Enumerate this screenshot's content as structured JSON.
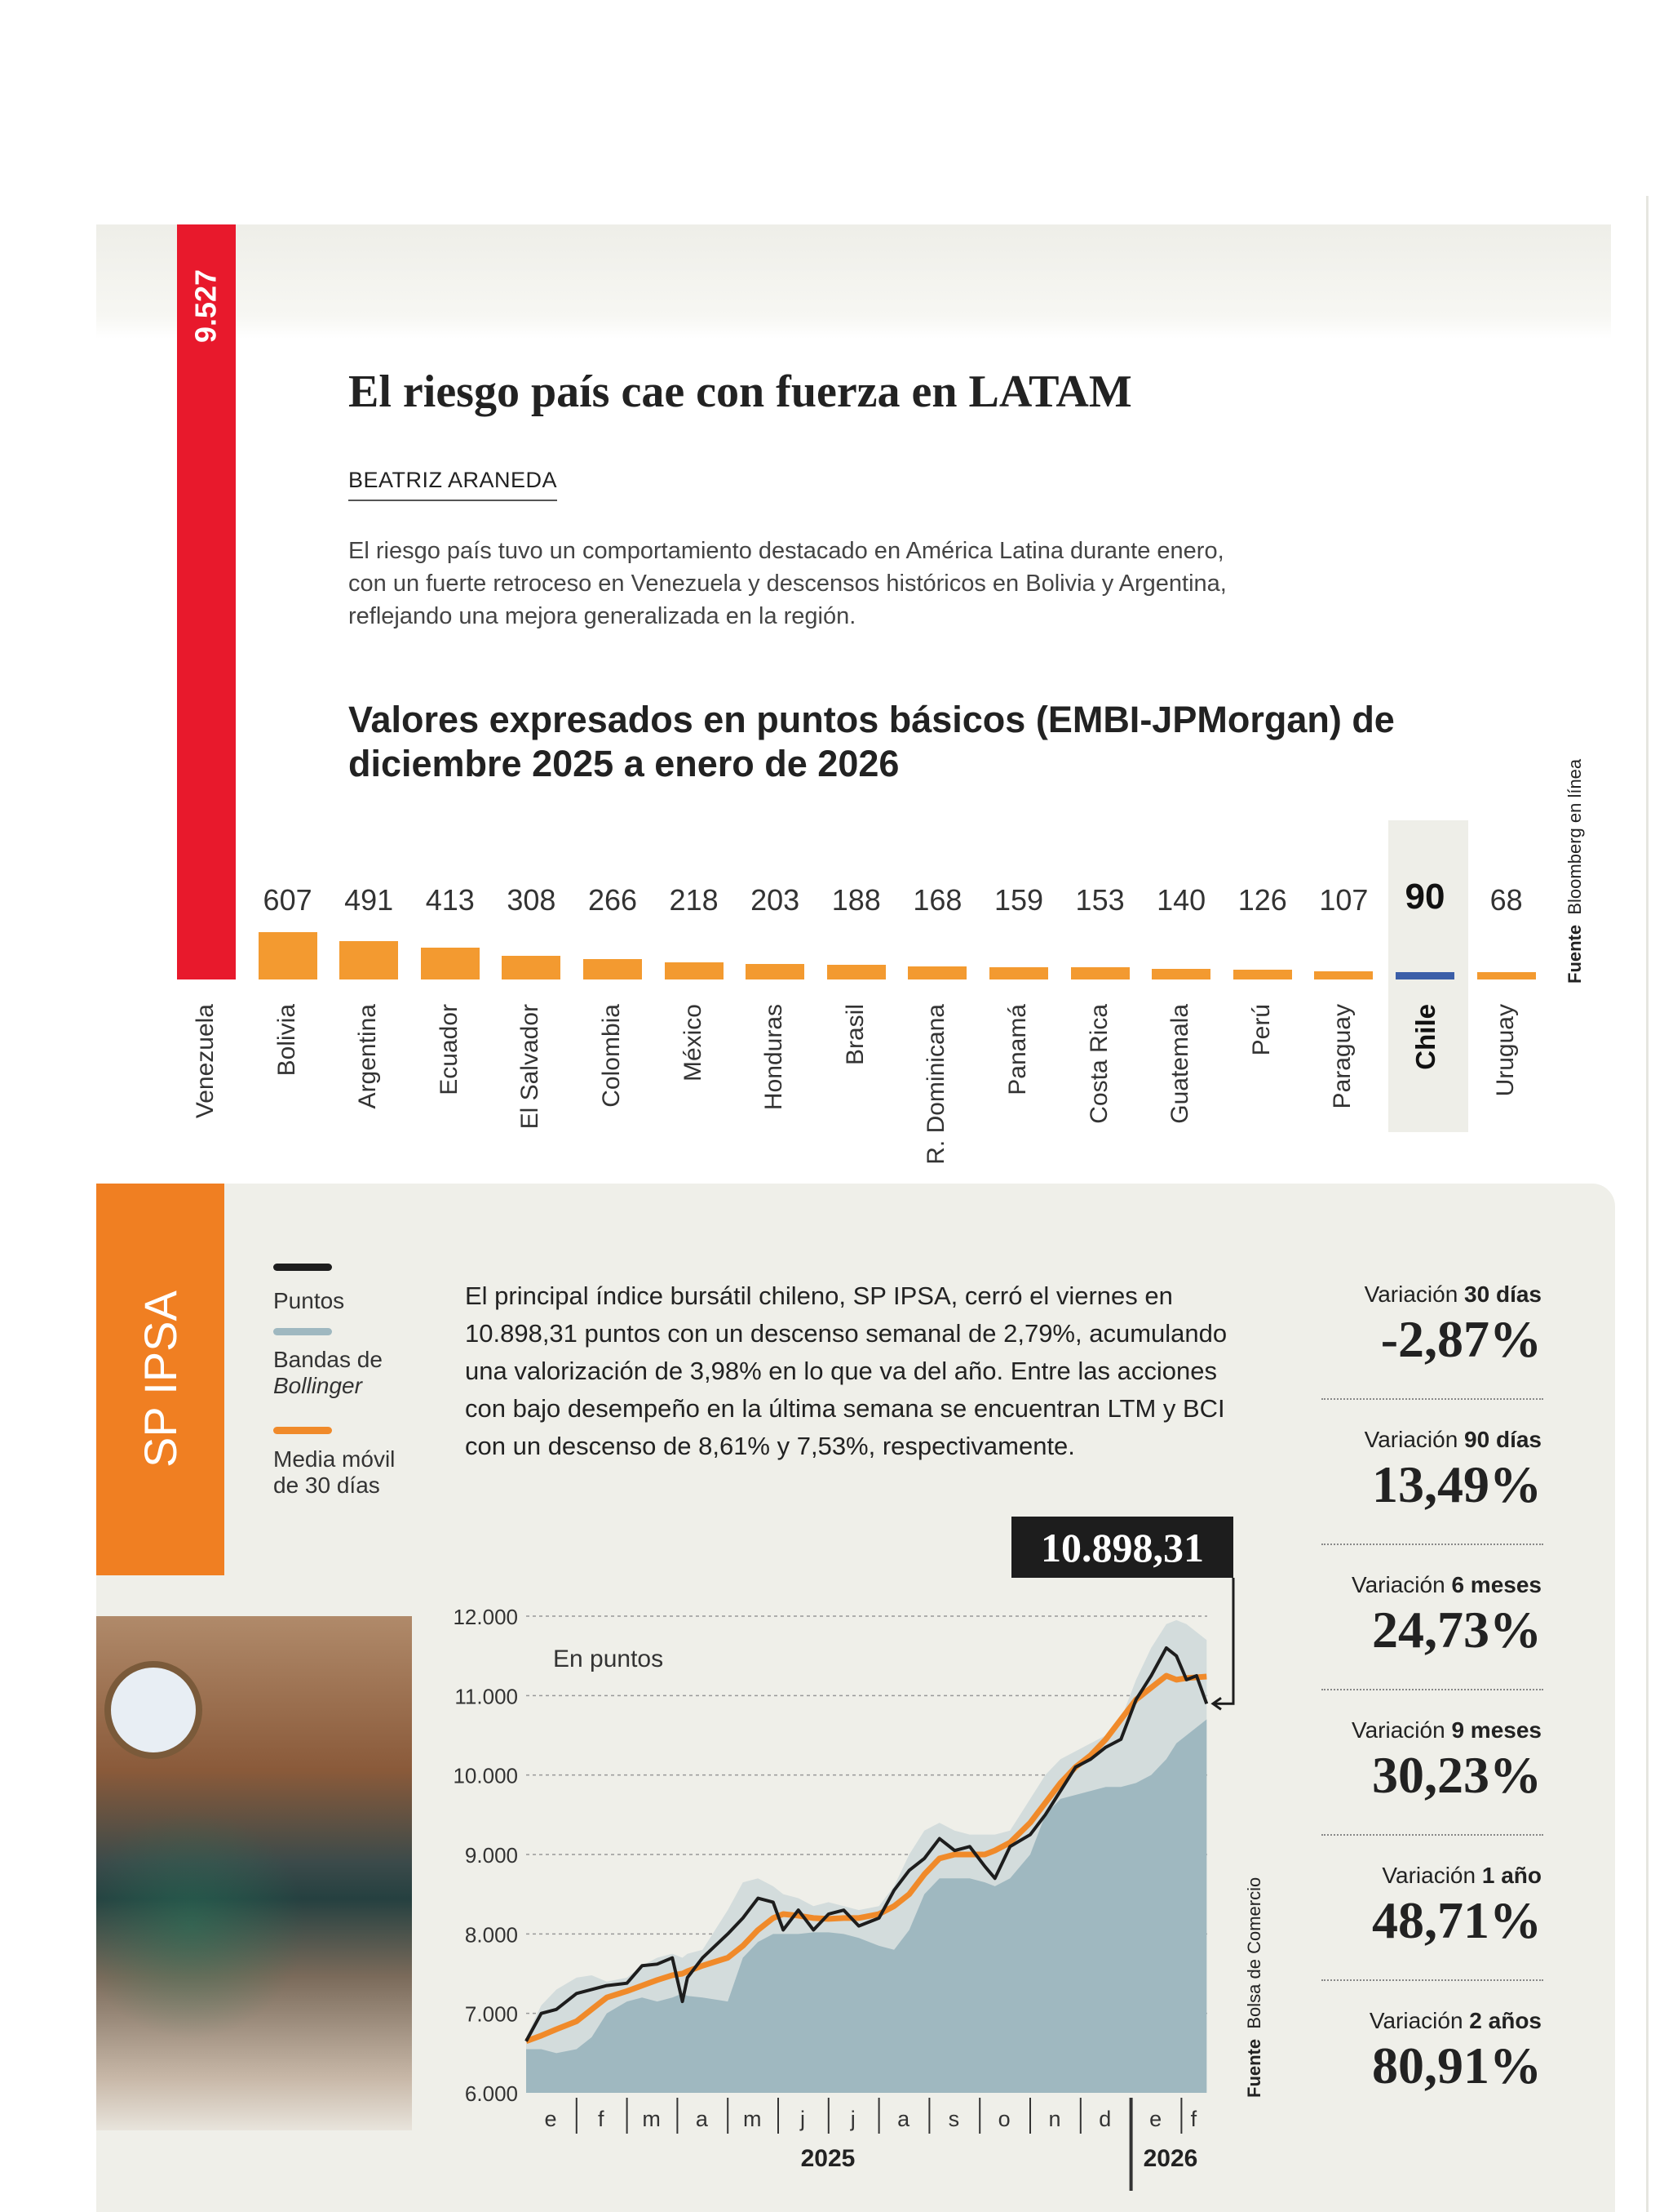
{
  "header": {
    "title": "El riesgo país cae con fuerza en LATAM",
    "author": "BEATRIZ ARANEDA",
    "intro": "El riesgo país tuvo un comportamiento destacado en América Latina durante enero, con un fuerte retroceso en Venezuela y descensos históricos en Bolivia y Argentina, reflejando una mejora generalizada en la región."
  },
  "chart_data": [
    {
      "type": "bar",
      "title": "Valores expresados en puntos básicos (EMBI-JPMorgan) de diciembre 2025 a enero de 2026",
      "categories": [
        "Venezuela",
        "Bolivia",
        "Argentina",
        "Ecuador",
        "El Salvador",
        "Colombia",
        "México",
        "Honduras",
        "Brasil",
        "R. Dominicana",
        "Panamá",
        "Costa Rica",
        "Guatemala",
        "Perú",
        "Paraguay",
        "Chile",
        "Uruguay"
      ],
      "values": [
        9527,
        607,
        491,
        413,
        308,
        266,
        218,
        203,
        188,
        168,
        159,
        153,
        140,
        126,
        107,
        90,
        68
      ],
      "value_labels": [
        "9.527",
        "607",
        "491",
        "413",
        "308",
        "266",
        "218",
        "203",
        "188",
        "168",
        "159",
        "153",
        "140",
        "126",
        "107",
        "90",
        "68"
      ],
      "highlight": "Chile",
      "colors": {
        "Venezuela": "#e8192c",
        "default": "#f39a30",
        "Chile": "#3b5ea8"
      },
      "source_label": "Fuente",
      "source": "Bloomberg en línea"
    },
    {
      "type": "line",
      "title": "SP IPSA",
      "ylabel": "En puntos",
      "ylim": [
        6000,
        12000
      ],
      "yticks": [
        "6.000",
        "7.000",
        "8.000",
        "9.000",
        "10.000",
        "11.000",
        "12.000"
      ],
      "ytick_values": [
        6000,
        7000,
        8000,
        9000,
        10000,
        11000,
        12000
      ],
      "xticks": [
        "e",
        "f",
        "m",
        "a",
        "m",
        "j",
        "j",
        "a",
        "s",
        "o",
        "n",
        "d",
        "e",
        "f"
      ],
      "years": [
        "2025",
        "2026"
      ],
      "x_months": [
        0,
        0.3,
        0.6,
        1,
        1.3,
        1.6,
        2,
        2.3,
        2.6,
        2.9,
        3.1,
        3.2,
        3.5,
        4,
        4.3,
        4.6,
        4.9,
        5.1,
        5.4,
        5.7,
        6,
        6.3,
        6.6,
        7,
        7.3,
        7.6,
        7.9,
        8.2,
        8.5,
        8.8,
        9.1,
        9.3,
        9.6,
        10,
        10.3,
        10.6,
        10.9,
        11.2,
        11.5,
        11.8,
        12.1,
        12.4,
        12.7,
        12.9,
        13.1,
        13.3,
        13.5
      ],
      "series": [
        {
          "name": "Puntos",
          "color": "#1d1d1d",
          "values": [
            6650,
            7000,
            7050,
            7250,
            7300,
            7350,
            7380,
            7600,
            7620,
            7700,
            7150,
            7450,
            7700,
            8000,
            8200,
            8450,
            8400,
            8050,
            8300,
            8050,
            8250,
            8300,
            8100,
            8200,
            8550,
            8800,
            8950,
            9200,
            9050,
            9100,
            8850,
            8700,
            9100,
            9250,
            9500,
            9800,
            10100,
            10200,
            10350,
            10450,
            10950,
            11250,
            11600,
            11500,
            11200,
            11250,
            10898
          ]
        },
        {
          "name": "Media móvil de 30 días",
          "color": "#f08a2a",
          "values": [
            6650,
            6720,
            6800,
            6900,
            7050,
            7200,
            7280,
            7350,
            7420,
            7480,
            7500,
            7530,
            7600,
            7700,
            7850,
            8050,
            8200,
            8250,
            8230,
            8200,
            8190,
            8200,
            8200,
            8250,
            8350,
            8500,
            8750,
            8950,
            9000,
            9000,
            9000,
            9050,
            9150,
            9400,
            9650,
            9900,
            10100,
            10250,
            10450,
            10700,
            10950,
            11100,
            11250,
            11200,
            11220,
            11230,
            11240
          ]
        },
        {
          "name": "Bandas de Bollinger (superior)",
          "color": "#aebfc6",
          "values": [
            6700,
            7100,
            7300,
            7450,
            7480,
            7400,
            7450,
            7600,
            7700,
            7750,
            7700,
            7750,
            7800,
            8300,
            8650,
            8700,
            8600,
            8500,
            8450,
            8350,
            8400,
            8350,
            8300,
            8350,
            8600,
            9000,
            9300,
            9400,
            9300,
            9250,
            9250,
            9250,
            9300,
            9700,
            10000,
            10200,
            10300,
            10400,
            10500,
            10700,
            11200,
            11600,
            11900,
            11950,
            11900,
            11800,
            11700
          ]
        },
        {
          "name": "Bandas de Bollinger (inferior)",
          "color": "#8aaab5",
          "values": [
            6550,
            6550,
            6500,
            6550,
            6700,
            7000,
            7150,
            7200,
            7150,
            7200,
            7250,
            7220,
            7200,
            7150,
            7700,
            7900,
            8000,
            8000,
            8000,
            8020,
            8020,
            8000,
            7950,
            7850,
            7800,
            8050,
            8500,
            8700,
            8700,
            8700,
            8650,
            8600,
            8700,
            9000,
            9500,
            9700,
            9750,
            9800,
            9850,
            9850,
            9900,
            10000,
            10200,
            10400,
            10500,
            10600,
            10700
          ]
        }
      ],
      "last_value_label": "10.898,31",
      "source_label": "Fuente",
      "source": "Bolsa de Comercio"
    }
  ],
  "ipsa": {
    "title": "SP IPSA",
    "legend": [
      {
        "label": "Puntos",
        "color": "#1d1d1d"
      },
      {
        "label": "Bandas de",
        "label_italic": "Bollinger",
        "color": "#9fb8c0"
      },
      {
        "label": "Media móvil",
        "label2": "de 30 días",
        "color": "#f08a2a"
      }
    ],
    "text": "El principal índice bursátil chileno, SP IPSA, cerró el viernes en 10.898,31 puntos con un descenso semanal de 2,79%, acumulando una valorización de 3,98% en lo que va del año. Entre las acciones con bajo desempeño en la última semana se encuentran LTM y BCI con un descenso de 8,61% y 7,53%, respectivamente.",
    "variations": [
      {
        "label": "Variación",
        "period": "30 días",
        "value": "-2,87%"
      },
      {
        "label": "Variación",
        "period": "90 días",
        "value": "13,49%"
      },
      {
        "label": "Variación",
        "period": "6 meses",
        "value": "24,73%"
      },
      {
        "label": "Variación",
        "period": "9 meses",
        "value": "30,23%"
      },
      {
        "label": "Variación",
        "period": "1 año",
        "value": "48,71%"
      },
      {
        "label": "Variación",
        "period": "2 años",
        "value": "80,91%"
      }
    ]
  }
}
